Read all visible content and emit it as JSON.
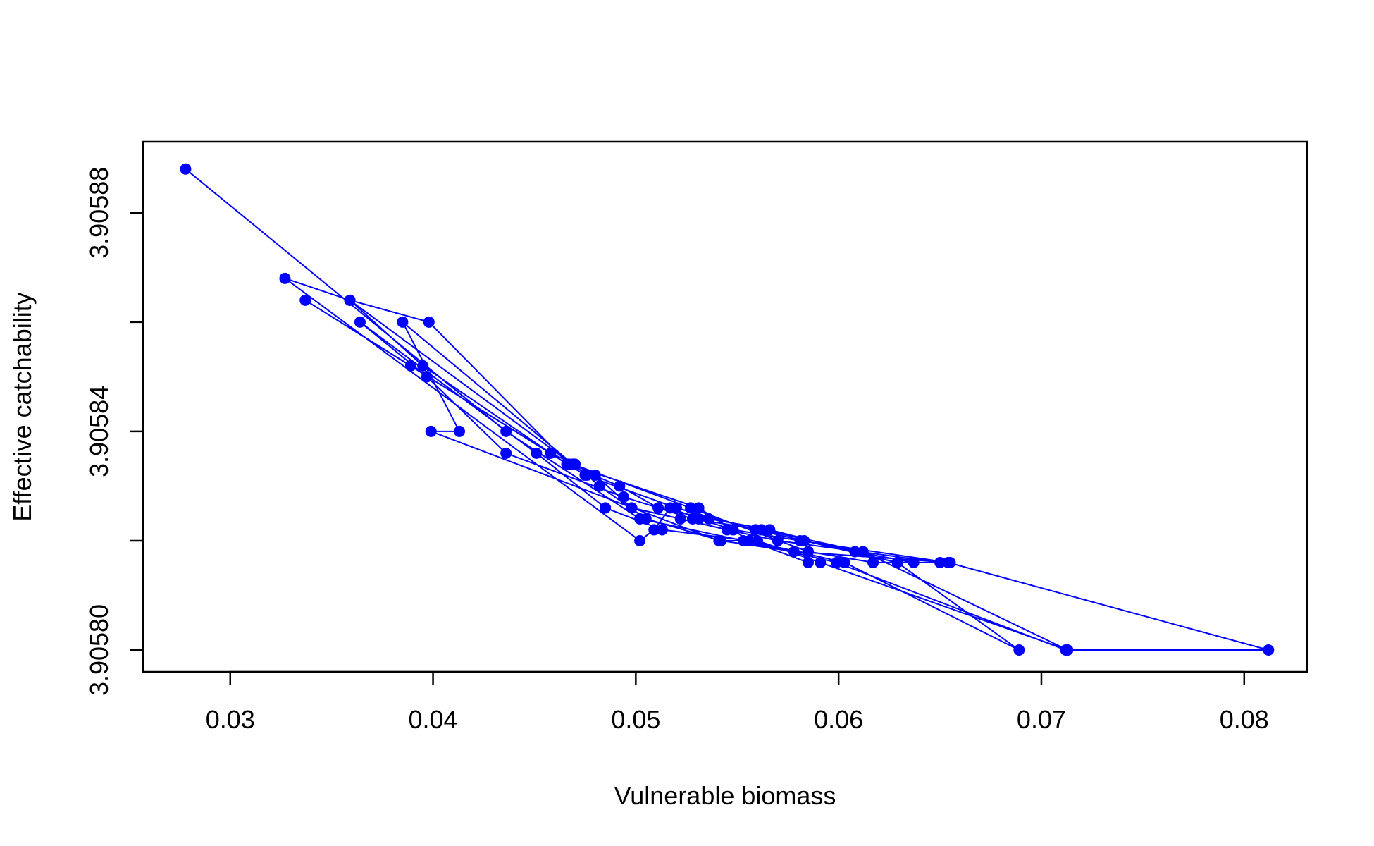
{
  "chart_data": {
    "type": "line",
    "title": "",
    "xlabel": "Vulnerable biomass",
    "ylabel": "Effective catchability",
    "xlim": [
      0.0257,
      0.0831
    ],
    "ylim": [
      3.905796,
      3.905893
    ],
    "xticks": [
      0.03,
      0.04,
      0.05,
      0.06,
      0.07,
      0.08
    ],
    "xtick_labels": [
      "0.03",
      "0.04",
      "0.05",
      "0.06",
      "0.07",
      "0.08"
    ],
    "yticks": [
      3.9058,
      3.90582,
      3.90584,
      3.90586,
      3.90588
    ],
    "ytick_labels": [
      "3.90580",
      "",
      "3.90584",
      "",
      "3.90588"
    ],
    "grid": false,
    "legend": "none",
    "colors": {
      "series": "#0000ff",
      "axis": "#000000"
    },
    "series": [
      {
        "marker": "filled-circle",
        "x": [
          0.0278,
          0.0436,
          0.0502,
          0.0553,
          0.0599,
          0.0712,
          0.0812,
          0.0654,
          0.0581,
          0.0548,
          0.0531,
          0.0517,
          0.0509,
          0.0502,
          0.0327,
          0.0359,
          0.0395,
          0.0466,
          0.0492,
          0.0511,
          0.0536,
          0.0566,
          0.0608,
          0.0637,
          0.065,
          0.057,
          0.0545,
          0.0522,
          0.0498,
          0.048,
          0.047,
          0.0458,
          0.0337,
          0.0389,
          0.0475,
          0.052,
          0.0559,
          0.0583,
          0.0629,
          0.0689,
          0.0603,
          0.0556,
          0.0513,
          0.0485,
          0.0451,
          0.0364,
          0.0397,
          0.0436,
          0.0494,
          0.0528,
          0.0562,
          0.0612,
          0.0713,
          0.0591,
          0.056,
          0.0541,
          0.0399,
          0.0413,
          0.0385,
          0.0469,
          0.0527,
          0.0585,
          0.0617,
          0.0655,
          0.0578,
          0.0542,
          0.0505,
          0.0482,
          0.0476,
          0.0359,
          0.0398,
          0.0467,
          0.0531,
          0.0556,
          0.0585
        ]
      }
    ],
    "y_values": [
      3.905888,
      3.90584,
      3.905824,
      3.90582,
      3.905816,
      3.9058,
      3.9058,
      3.905816,
      3.90582,
      3.905822,
      3.905824,
      3.905826,
      3.905822,
      3.90582,
      3.905868,
      3.905864,
      3.905852,
      3.905834,
      3.90583,
      3.905826,
      3.905824,
      3.905822,
      3.905818,
      3.905816,
      3.905816,
      3.90582,
      3.905822,
      3.905824,
      3.905826,
      3.905832,
      3.905834,
      3.905836,
      3.905864,
      3.905852,
      3.905832,
      3.905826,
      3.905822,
      3.90582,
      3.905816,
      3.9058,
      3.905816,
      3.90582,
      3.905822,
      3.905826,
      3.905836,
      3.90586,
      3.90585,
      3.905836,
      3.905828,
      3.905824,
      3.905822,
      3.905818,
      3.9058,
      3.905816,
      3.90582,
      3.90582,
      3.90584,
      3.90584,
      3.90586,
      3.905834,
      3.905826,
      3.905818,
      3.905816,
      3.905816,
      3.905818,
      3.90582,
      3.905824,
      3.90583,
      3.905832,
      3.905864,
      3.90586,
      3.905834,
      3.905826,
      3.90582,
      3.905816
    ]
  }
}
